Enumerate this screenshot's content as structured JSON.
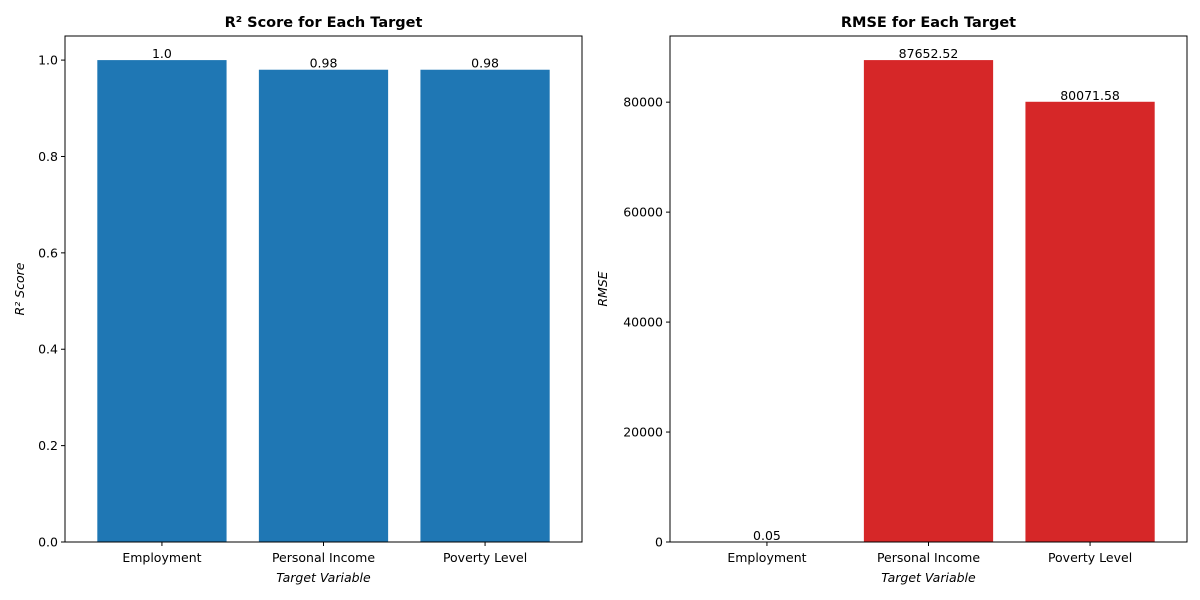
{
  "chart_data": [
    {
      "type": "bar",
      "title": "R² Score for Each Target",
      "xlabel": "Target Variable",
      "ylabel": "R² Score",
      "categories": [
        "Employment",
        "Personal Income",
        "Poverty Level"
      ],
      "values": [
        1.0,
        0.98,
        0.98
      ],
      "value_labels": [
        "1.0",
        "0.98",
        "0.98"
      ],
      "ylim": [
        0,
        1.05
      ],
      "yticks": [
        0.0,
        0.2,
        0.4,
        0.6,
        0.8,
        1.0
      ],
      "ytick_labels": [
        "0.0",
        "0.2",
        "0.4",
        "0.6",
        "0.8",
        "1.0"
      ],
      "color": "#1f77b4",
      "grid": false,
      "legend": "none"
    },
    {
      "type": "bar",
      "title": "RMSE for Each Target",
      "xlabel": "Target Variable",
      "ylabel": "RMSE",
      "categories": [
        "Employment",
        "Personal Income",
        "Poverty Level"
      ],
      "values": [
        0.05,
        87652.52,
        80071.58
      ],
      "value_labels": [
        "0.05",
        "87652.52",
        "80071.58"
      ],
      "ylim": [
        0,
        92035
      ],
      "yticks": [
        0,
        20000,
        40000,
        60000,
        80000
      ],
      "ytick_labels": [
        "0",
        "20000",
        "40000",
        "60000",
        "80000"
      ],
      "color": "#d62728",
      "grid": false,
      "legend": "none"
    }
  ]
}
